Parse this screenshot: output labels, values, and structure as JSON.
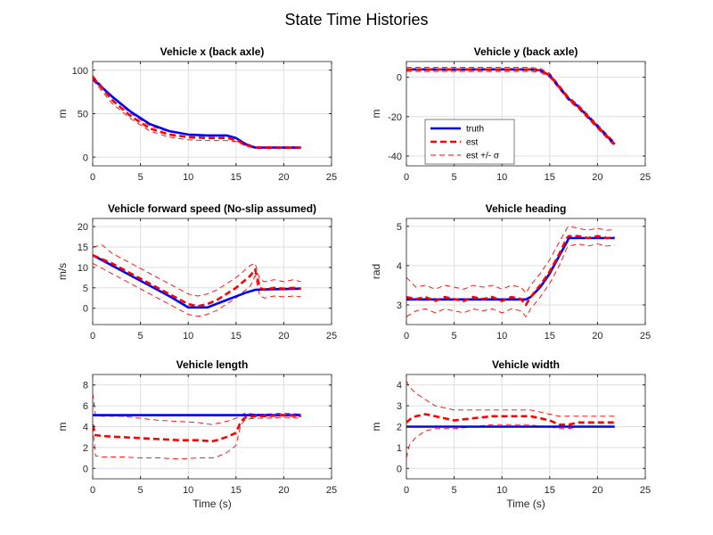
{
  "figure_title": "State Time Histories",
  "colors": {
    "truth": "#0000ff",
    "est": "#ff0000",
    "grid": "#dfdfdf",
    "axis": "#262626"
  },
  "legend": {
    "placement": "lower-left",
    "entries": [
      "truth",
      "est",
      "est +/- σ"
    ]
  },
  "chart_data": [
    {
      "type": "line",
      "title": "Vehicle x (back axle)",
      "xlabel": "",
      "ylabel": "m",
      "xlim": [
        0,
        25
      ],
      "ylim": [
        -10,
        110
      ],
      "xticks": [
        0,
        5,
        10,
        15,
        20,
        25
      ],
      "yticks": [
        0,
        50,
        100
      ],
      "grid": true,
      "series": [
        {
          "role": "truth",
          "x": [
            0,
            2,
            4,
            6,
            8,
            10,
            12,
            14,
            15,
            16,
            17,
            18,
            20,
            21.8
          ],
          "y": [
            90,
            70,
            52,
            38,
            30,
            26,
            25,
            25,
            22,
            15,
            11,
            11,
            11,
            11
          ]
        },
        {
          "role": "est",
          "x": [
            0,
            2,
            4,
            6,
            8,
            10,
            12,
            14,
            15,
            16,
            17,
            18,
            20,
            21.8
          ],
          "y": [
            92,
            66,
            47,
            33,
            26,
            23,
            22,
            22,
            20,
            14,
            11,
            11,
            11,
            11
          ]
        },
        {
          "role": "est_upper",
          "x": [
            0,
            2,
            4,
            6,
            8,
            10,
            12,
            14,
            15,
            16,
            17,
            18,
            20,
            21.8
          ],
          "y": [
            94,
            69,
            50,
            36,
            29,
            26,
            25,
            25,
            22,
            16,
            12,
            12,
            12,
            12
          ]
        },
        {
          "role": "est_lower",
          "x": [
            0,
            2,
            4,
            6,
            8,
            10,
            12,
            14,
            15,
            16,
            17,
            18,
            20,
            21.8
          ],
          "y": [
            89,
            62,
            44,
            30,
            23,
            20,
            19,
            19,
            18,
            13,
            10,
            10,
            10,
            10
          ]
        }
      ]
    },
    {
      "type": "line",
      "title": "Vehicle y (back axle)",
      "xlabel": "",
      "ylabel": "m",
      "xlim": [
        0,
        25
      ],
      "ylim": [
        -45,
        8
      ],
      "xticks": [
        0,
        5,
        10,
        15,
        20,
        25
      ],
      "yticks": [
        -40,
        -20,
        0
      ],
      "grid": true,
      "legend": true,
      "series": [
        {
          "role": "truth",
          "x": [
            0,
            5,
            10,
            13,
            14,
            15,
            16,
            17,
            18,
            20,
            21.8
          ],
          "y": [
            4,
            4,
            4,
            4,
            3.5,
            1,
            -5,
            -11,
            -15,
            -25,
            -34
          ]
        },
        {
          "role": "est",
          "x": [
            0,
            5,
            10,
            13,
            14,
            15,
            16,
            17,
            18,
            20,
            21.8
          ],
          "y": [
            4,
            4,
            4,
            4,
            3.5,
            1,
            -5,
            -11,
            -15,
            -25,
            -34
          ]
        },
        {
          "role": "est_upper",
          "x": [
            0,
            5,
            10,
            13,
            14,
            15,
            16,
            17,
            18,
            20,
            21.8
          ],
          "y": [
            5,
            5,
            5,
            5,
            4.5,
            2,
            -4,
            -10,
            -14,
            -24,
            -33
          ]
        },
        {
          "role": "est_lower",
          "x": [
            0,
            5,
            10,
            13,
            14,
            15,
            16,
            17,
            18,
            20,
            21.8
          ],
          "y": [
            3,
            3,
            3,
            3,
            2.5,
            0,
            -6,
            -12,
            -16,
            -26,
            -35
          ]
        }
      ]
    },
    {
      "type": "line",
      "title": "Vehicle forward speed (No-slip assumed)",
      "xlabel": "",
      "ylabel": "m/s",
      "xlim": [
        0,
        25
      ],
      "ylim": [
        -4,
        22
      ],
      "xticks": [
        0,
        5,
        10,
        15,
        20,
        25
      ],
      "yticks": [
        0,
        5,
        10,
        15,
        20
      ],
      "grid": true,
      "series": [
        {
          "role": "truth",
          "x": [
            0,
            2,
            4,
            6,
            8,
            10,
            12,
            14,
            16,
            17,
            18,
            20,
            21.8
          ],
          "y": [
            13,
            10.5,
            8,
            5.5,
            3,
            0.2,
            0.2,
            2,
            3.8,
            4.5,
            4.6,
            4.7,
            4.8
          ]
        },
        {
          "role": "est",
          "x": [
            0,
            2,
            4,
            6,
            8,
            10,
            11,
            12,
            13,
            14,
            15,
            16,
            16.5,
            17,
            17.5,
            18,
            19,
            20,
            21,
            21.8
          ],
          "y": [
            13,
            11,
            8.5,
            6,
            3.5,
            1,
            0.5,
            1,
            2,
            3.5,
            5,
            7,
            8,
            9.5,
            5,
            4.5,
            5,
            4.8,
            5,
            4.8
          ]
        },
        {
          "role": "est_upper",
          "x": [
            0,
            1,
            2,
            4,
            6,
            8,
            10,
            11,
            12,
            13,
            14,
            15,
            16,
            16.5,
            17,
            17.5,
            18,
            19,
            20,
            21,
            21.8
          ],
          "y": [
            15,
            15.5,
            13.5,
            11,
            8.5,
            6,
            3.5,
            3,
            3.5,
            4.5,
            6,
            7.5,
            9.5,
            10.5,
            11,
            7,
            6.5,
            7,
            6.5,
            7,
            6.5
          ]
        },
        {
          "role": "est_lower",
          "x": [
            0,
            2,
            4,
            6,
            8,
            10,
            11,
            12,
            13,
            14,
            15,
            16,
            16.5,
            17,
            17.5,
            18,
            19,
            20,
            21,
            21.8
          ],
          "y": [
            11,
            8.5,
            6,
            3.5,
            1,
            -1.5,
            -2,
            -1.5,
            -0.5,
            1,
            2.5,
            4.5,
            5.5,
            8,
            3,
            2.5,
            3,
            2.8,
            3,
            2.8
          ]
        }
      ]
    },
    {
      "type": "line",
      "title": "Vehicle heading",
      "xlabel": "",
      "ylabel": "rad",
      "xlim": [
        0,
        25
      ],
      "ylim": [
        2.5,
        5.2
      ],
      "xticks": [
        0,
        5,
        10,
        15,
        20,
        25
      ],
      "yticks": [
        3,
        4,
        5
      ],
      "grid": true,
      "series": [
        {
          "role": "truth",
          "x": [
            0,
            5,
            10,
            12.5,
            13,
            14,
            15,
            16,
            16.8,
            17,
            18,
            20,
            21.8
          ],
          "y": [
            3.14,
            3.14,
            3.14,
            3.14,
            3.2,
            3.45,
            3.8,
            4.25,
            4.6,
            4.7,
            4.7,
            4.7,
            4.7
          ]
        },
        {
          "role": "est",
          "x": [
            0,
            1,
            2,
            3,
            4,
            5,
            6,
            7,
            8,
            9,
            10,
            11,
            12,
            12.5,
            13,
            14,
            15,
            16,
            16.8,
            17,
            18,
            19,
            20,
            21,
            21.8
          ],
          "y": [
            3.2,
            3.15,
            3.2,
            3.1,
            3.2,
            3.15,
            3.1,
            3.2,
            3.15,
            3.2,
            3.1,
            3.2,
            3.15,
            3.0,
            3.2,
            3.5,
            3.85,
            4.3,
            4.7,
            4.75,
            4.75,
            4.7,
            4.75,
            4.7,
            4.72
          ]
        },
        {
          "role": "est_upper",
          "x": [
            0,
            1,
            2,
            3,
            4,
            5,
            6,
            7,
            8,
            9,
            10,
            11,
            12,
            12.5,
            13,
            14,
            15,
            16,
            16.8,
            17,
            18,
            19,
            20,
            21,
            21.8
          ],
          "y": [
            3.7,
            3.45,
            3.5,
            3.4,
            3.5,
            3.45,
            3.4,
            3.5,
            3.45,
            3.5,
            3.4,
            3.5,
            3.45,
            3.3,
            3.5,
            3.8,
            4.15,
            4.6,
            4.95,
            5.0,
            4.95,
            4.9,
            4.95,
            4.9,
            4.92
          ]
        },
        {
          "role": "est_lower",
          "x": [
            0,
            1,
            2,
            3,
            4,
            5,
            6,
            7,
            8,
            9,
            10,
            11,
            12,
            12.5,
            13,
            14,
            15,
            16,
            16.8,
            17,
            18,
            19,
            20,
            21,
            21.8
          ],
          "y": [
            2.7,
            2.85,
            2.9,
            2.8,
            2.9,
            2.85,
            2.8,
            2.9,
            2.85,
            2.9,
            2.8,
            2.9,
            2.85,
            2.7,
            2.9,
            3.2,
            3.55,
            4.0,
            4.45,
            4.5,
            4.55,
            4.5,
            4.55,
            4.5,
            4.52
          ]
        }
      ]
    },
    {
      "type": "line",
      "title": "Vehicle length",
      "xlabel": "Time (s)",
      "ylabel": "m",
      "xlim": [
        0,
        25
      ],
      "ylim": [
        -1,
        9
      ],
      "xticks": [
        0,
        5,
        10,
        15,
        20,
        25
      ],
      "yticks": [
        0,
        2,
        4,
        6,
        8
      ],
      "grid": true,
      "series": [
        {
          "role": "truth",
          "x": [
            0,
            21.8
          ],
          "y": [
            5.1,
            5.1
          ]
        },
        {
          "role": "est",
          "x": [
            0,
            0.3,
            1,
            3,
            5,
            7,
            9,
            11,
            12.5,
            13,
            14,
            15,
            15.5,
            16,
            17,
            18,
            20,
            21.8
          ],
          "y": [
            4.2,
            3.2,
            3.1,
            3.0,
            2.9,
            2.8,
            2.7,
            2.7,
            2.6,
            2.7,
            3.0,
            3.4,
            4.5,
            4.9,
            5.0,
            5.0,
            5.1,
            5.0
          ]
        },
        {
          "role": "est_upper",
          "x": [
            0,
            0.3,
            1,
            3,
            5,
            7,
            9,
            11,
            12.5,
            13,
            14,
            15,
            15.5,
            16,
            17,
            18,
            20,
            21.8
          ],
          "y": [
            7.2,
            5.1,
            5.0,
            5.0,
            4.8,
            4.6,
            4.5,
            4.4,
            4.2,
            4.3,
            4.5,
            4.8,
            5.1,
            5.3,
            5.2,
            5.2,
            5.3,
            5.2
          ]
        },
        {
          "role": "est_lower",
          "x": [
            0,
            0.3,
            1,
            3,
            5,
            7,
            9,
            11,
            12.5,
            13,
            14,
            15,
            15.5,
            16,
            17,
            18,
            20,
            21.8
          ],
          "y": [
            4.0,
            1.2,
            1.1,
            1.1,
            1.0,
            1.0,
            0.9,
            1.0,
            1.0,
            1.1,
            1.5,
            2.2,
            4.2,
            4.7,
            4.8,
            4.8,
            4.9,
            4.8
          ]
        }
      ]
    },
    {
      "type": "line",
      "title": "Vehicle width",
      "xlabel": "Time (s)",
      "ylabel": "m",
      "xlim": [
        0,
        25
      ],
      "ylim": [
        -0.5,
        4.5
      ],
      "xticks": [
        0,
        5,
        10,
        15,
        20,
        25
      ],
      "yticks": [
        0,
        1,
        2,
        3,
        4
      ],
      "grid": true,
      "series": [
        {
          "role": "truth",
          "x": [
            0,
            21.8
          ],
          "y": [
            2.0,
            2.0
          ]
        },
        {
          "role": "est",
          "x": [
            0,
            0.5,
            1,
            2,
            3,
            5,
            7,
            9,
            11,
            13,
            14,
            15,
            16,
            17,
            18,
            20,
            21.8
          ],
          "y": [
            2.2,
            2.4,
            2.5,
            2.6,
            2.5,
            2.3,
            2.4,
            2.5,
            2.5,
            2.5,
            2.4,
            2.3,
            2.1,
            2.1,
            2.2,
            2.2,
            2.2
          ]
        },
        {
          "role": "est_upper",
          "x": [
            0,
            0.3,
            1,
            2,
            3,
            5,
            7,
            9,
            11,
            13,
            14,
            15,
            16,
            17,
            18,
            20,
            21.8
          ],
          "y": [
            4.2,
            3.9,
            3.6,
            3.3,
            3.0,
            2.8,
            2.8,
            2.8,
            2.8,
            2.8,
            2.7,
            2.6,
            2.5,
            2.5,
            2.5,
            2.5,
            2.5
          ]
        },
        {
          "role": "est_lower",
          "x": [
            0,
            0.3,
            1,
            2,
            3,
            5,
            7,
            9,
            11,
            13,
            14,
            15,
            16,
            17,
            18,
            20,
            21.8
          ],
          "y": [
            0.5,
            1.1,
            1.5,
            1.8,
            1.9,
            1.9,
            2.0,
            2.1,
            2.1,
            2.1,
            2.0,
            2.0,
            1.9,
            1.9,
            2.0,
            2.0,
            2.0
          ]
        }
      ]
    }
  ]
}
